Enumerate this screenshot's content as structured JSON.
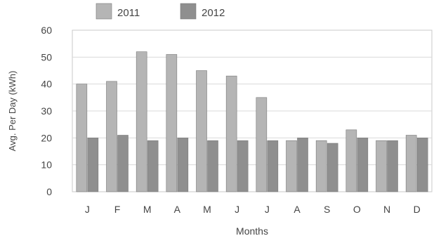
{
  "chart_data": {
    "type": "bar",
    "categories": [
      "J",
      "F",
      "M",
      "A",
      "M",
      "J",
      "J",
      "A",
      "S",
      "O",
      "N",
      "D"
    ],
    "series": [
      {
        "name": "2011",
        "values": [
          40,
          41,
          52,
          51,
          45,
          43,
          35,
          19,
          19,
          23,
          19,
          21
        ],
        "color": "#b5b5b5"
      },
      {
        "name": "2012",
        "values": [
          20,
          21,
          19,
          20,
          19,
          19,
          19,
          20,
          18,
          20,
          19,
          20
        ],
        "color": "#8f8f8f"
      }
    ],
    "title": "",
    "xlabel": "Months",
    "ylabel": "Avg. Per Day (kWh)",
    "ylim": [
      0,
      60
    ],
    "yticks": [
      0,
      10,
      20,
      30,
      40,
      50,
      60
    ],
    "grid": true,
    "legend": "top-left"
  }
}
